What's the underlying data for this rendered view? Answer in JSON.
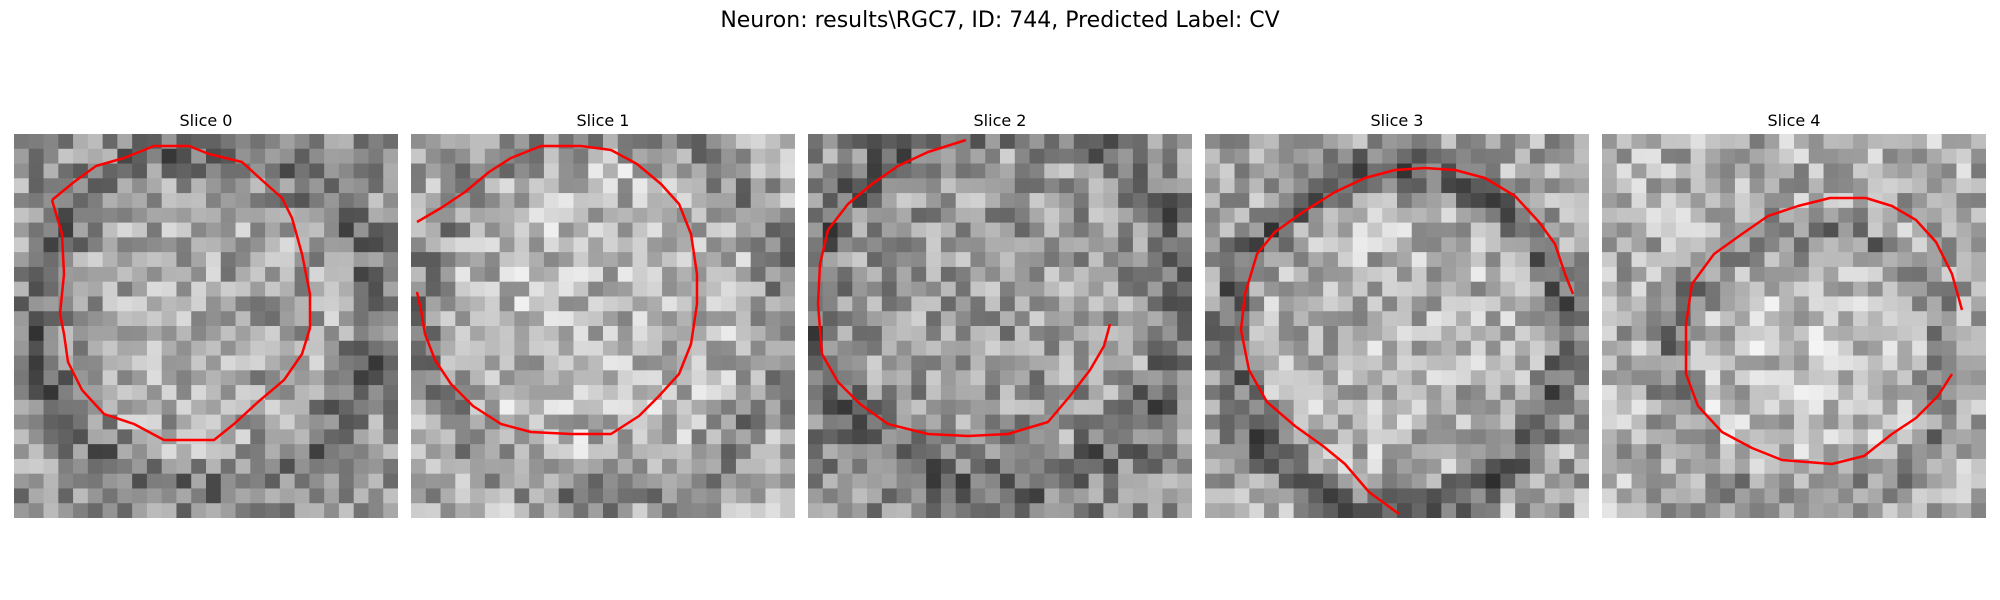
{
  "figure": {
    "title": "Neuron: results\\RGC7, ID: 744, Predicted Label: CV"
  },
  "panels": [
    {
      "title": "Slice 0"
    },
    {
      "title": "Slice 1"
    },
    {
      "title": "Slice 2"
    },
    {
      "title": "Slice 3"
    },
    {
      "title": "Slice 4"
    }
  ],
  "colors": {
    "contour": "#ff0000",
    "colormap": "grayscale"
  }
}
